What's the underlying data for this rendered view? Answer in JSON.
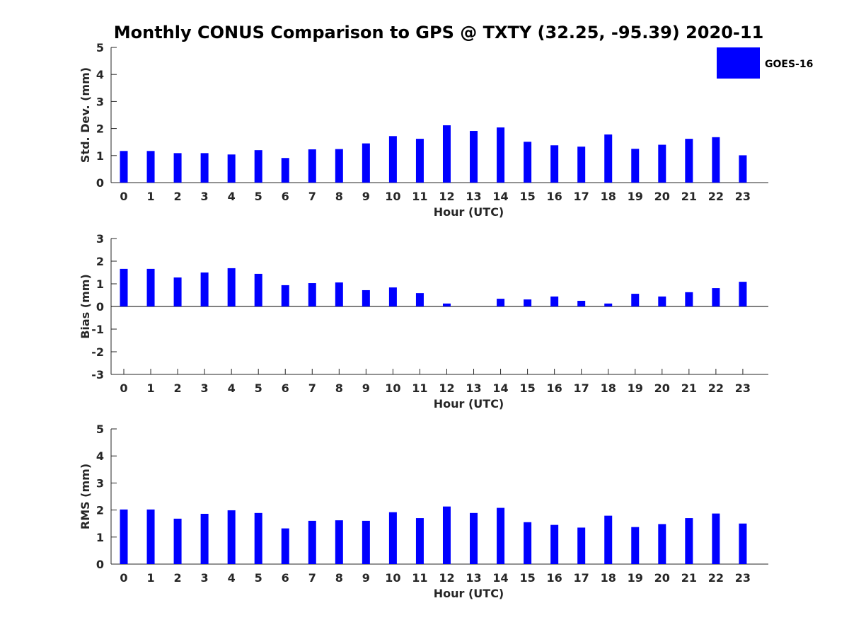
{
  "title": "Monthly CONUS Comparison to GPS @ TXTY (32.25, -95.39) 2020-11",
  "legend": {
    "label": "GOES-16",
    "color": "#0000FF",
    "placement": "top-right"
  },
  "bar_color": "#0000FF",
  "chart_data": [
    {
      "type": "bar",
      "xlabel": "Hour (UTC)",
      "ylabel": "Std. Dev. (mm)",
      "ylim": [
        0,
        5
      ],
      "yticks": [
        0,
        1,
        2,
        3,
        4,
        5
      ],
      "categories": [
        "0",
        "1",
        "2",
        "3",
        "4",
        "5",
        "6",
        "7",
        "8",
        "9",
        "10",
        "11",
        "12",
        "13",
        "14",
        "15",
        "16",
        "17",
        "18",
        "19",
        "20",
        "21",
        "22",
        "23"
      ],
      "series": [
        {
          "name": "GOES-16",
          "values": [
            1.17,
            1.17,
            1.09,
            1.09,
            1.04,
            1.2,
            0.91,
            1.23,
            1.24,
            1.45,
            1.72,
            1.62,
            2.12,
            1.91,
            2.04,
            1.51,
            1.38,
            1.33,
            1.78,
            1.25,
            1.4,
            1.62,
            1.68,
            1.01
          ]
        }
      ],
      "grid": false
    },
    {
      "type": "bar",
      "xlabel": "Hour (UTC)",
      "ylabel": "Bias (mm)",
      "ylim": [
        -3,
        3
      ],
      "yticks": [
        -3,
        -2,
        -1,
        0,
        1,
        2,
        3
      ],
      "categories": [
        "0",
        "1",
        "2",
        "3",
        "4",
        "5",
        "6",
        "7",
        "8",
        "9",
        "10",
        "11",
        "12",
        "13",
        "14",
        "15",
        "16",
        "17",
        "18",
        "19",
        "20",
        "21",
        "22",
        "23"
      ],
      "series": [
        {
          "name": "GOES-16",
          "values": [
            1.66,
            1.66,
            1.28,
            1.5,
            1.69,
            1.44,
            0.94,
            1.03,
            1.06,
            0.72,
            0.84,
            0.59,
            0.13,
            0.0,
            0.34,
            0.31,
            0.44,
            0.25,
            0.13,
            0.56,
            0.44,
            0.63,
            0.81,
            1.09
          ]
        }
      ],
      "grid": false
    },
    {
      "type": "bar",
      "xlabel": "Hour (UTC)",
      "ylabel": "RMS (mm)",
      "ylim": [
        0,
        5
      ],
      "yticks": [
        0,
        1,
        2,
        3,
        4,
        5
      ],
      "categories": [
        "0",
        "1",
        "2",
        "3",
        "4",
        "5",
        "6",
        "7",
        "8",
        "9",
        "10",
        "11",
        "12",
        "13",
        "14",
        "15",
        "16",
        "17",
        "18",
        "19",
        "20",
        "21",
        "22",
        "23"
      ],
      "series": [
        {
          "name": "GOES-16",
          "values": [
            2.02,
            2.02,
            1.68,
            1.86,
            1.99,
            1.89,
            1.32,
            1.6,
            1.62,
            1.6,
            1.92,
            1.7,
            2.13,
            1.89,
            2.08,
            1.55,
            1.45,
            1.35,
            1.79,
            1.37,
            1.48,
            1.7,
            1.87,
            1.5
          ]
        }
      ],
      "grid": false
    }
  ]
}
